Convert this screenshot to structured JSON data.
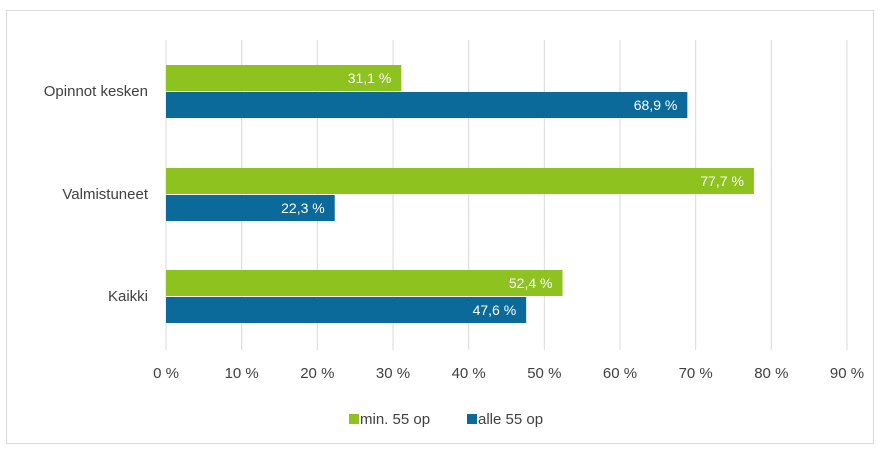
{
  "chart_data": {
    "type": "bar",
    "orientation": "horizontal",
    "categories": [
      "Opinnot kesken",
      "Valmistuneet",
      "Kaikki"
    ],
    "series": [
      {
        "name": "min. 55 op",
        "color": "#8dc21f",
        "values": [
          31.1,
          77.7,
          52.4
        ],
        "labels": [
          "31,1 %",
          "77,7 %",
          "52,4 %"
        ]
      },
      {
        "name": "alle 55 op",
        "color": "#0b6a9a",
        "values": [
          68.9,
          22.3,
          47.6
        ],
        "labels": [
          "68,9 %",
          "22,3 %",
          "47,6 %"
        ]
      }
    ],
    "xlim": [
      0,
      90
    ],
    "x_ticks": [
      0,
      10,
      20,
      30,
      40,
      50,
      60,
      70,
      80,
      90
    ],
    "x_tick_labels": [
      "0 %",
      "10 %",
      "20 %",
      "30 %",
      "40 %",
      "50 %",
      "60 %",
      "70 %",
      "80 %",
      "90 %"
    ],
    "grid": "vertical",
    "legend_position": "bottom",
    "title": "",
    "xlabel": "",
    "ylabel": ""
  }
}
